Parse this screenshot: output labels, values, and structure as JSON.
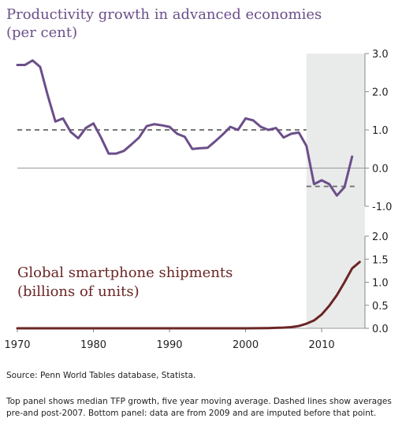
{
  "chart_data": [
    {
      "type": "line",
      "title_line1": "Productivity growth in advanced economies",
      "title_line2": "(per cent)",
      "ylim": [
        -1.0,
        3.0
      ],
      "yticks": [
        "3.0",
        "2.0",
        "1.0",
        "0.0",
        "-1.0"
      ],
      "ytick_values": [
        3.0,
        2.0,
        1.0,
        0.0,
        -1.0
      ],
      "series": [
        {
          "color": "#6b4e8a",
          "x": [
            1970,
            1971,
            1972,
            1973,
            1974,
            1975,
            1976,
            1977,
            1978,
            1979,
            1980,
            1981,
            1982,
            1983,
            1984,
            1985,
            1986,
            1987,
            1988,
            1989,
            1990,
            1991,
            1992,
            1993,
            1994,
            1995,
            1996,
            1997,
            1998,
            1999,
            2000,
            2001,
            2002,
            2003,
            2004,
            2005,
            2006,
            2007,
            2008,
            2009,
            2010,
            2011,
            2012,
            2013,
            2014
          ],
          "values": [
            2.7,
            2.7,
            2.82,
            2.65,
            1.9,
            1.22,
            1.3,
            0.95,
            0.78,
            1.05,
            1.17,
            0.8,
            0.38,
            0.38,
            0.45,
            0.62,
            0.8,
            1.1,
            1.15,
            1.12,
            1.08,
            0.9,
            0.82,
            0.5,
            0.52,
            0.53,
            0.7,
            0.88,
            1.08,
            1.0,
            1.3,
            1.25,
            1.08,
            1.0,
            1.05,
            0.8,
            0.9,
            0.93,
            0.58,
            -0.42,
            -0.32,
            -0.42,
            -0.72,
            -0.5,
            0.3
          ]
        }
      ],
      "averages": [
        {
          "x_start": 1970,
          "x_end": 2008,
          "value": 1.0
        },
        {
          "x_start": 2008,
          "x_end": 2014,
          "value": -0.48
        }
      ]
    },
    {
      "type": "area",
      "title_line1": "Global smartphone shipments",
      "title_line2": "(billions of units)",
      "ylim": [
        0.0,
        2.0
      ],
      "yticks": [
        "2.0",
        "1.5",
        "1.0",
        "0.5",
        "0.0"
      ],
      "ytick_values": [
        2.0,
        1.5,
        1.0,
        0.5,
        0.0
      ],
      "series": [
        {
          "color": "#6b2525",
          "x": [
            1970,
            1975,
            1980,
            1985,
            1990,
            1995,
            2000,
            2003,
            2004,
            2005,
            2006,
            2007,
            2008,
            2009,
            2010,
            2011,
            2012,
            2013,
            2014,
            2015
          ],
          "values": [
            0.0,
            0.0,
            0.0,
            0.0,
            0.0,
            0.0,
            0.0,
            0.005,
            0.01,
            0.015,
            0.025,
            0.05,
            0.1,
            0.17,
            0.3,
            0.49,
            0.72,
            1.0,
            1.3,
            1.44
          ]
        }
      ]
    }
  ],
  "x_axis": {
    "xlim": [
      1970,
      2016
    ],
    "ticks": [
      "1970",
      "1980",
      "1990",
      "2000",
      "2010"
    ],
    "tick_values": [
      1970,
      1980,
      1990,
      2000,
      2010
    ]
  },
  "shaded_region": {
    "x_start": 2008,
    "x_end": 2016,
    "color": "#e9ebea"
  },
  "footer": {
    "source": "Source:  Penn World Tables database, Statista.",
    "note": "Top panel shows median TFP growth, five year moving average.  Dashed lines show averages pre-and post-2007.  Bottom panel:  data are from 2009 and are imputed before that point."
  }
}
